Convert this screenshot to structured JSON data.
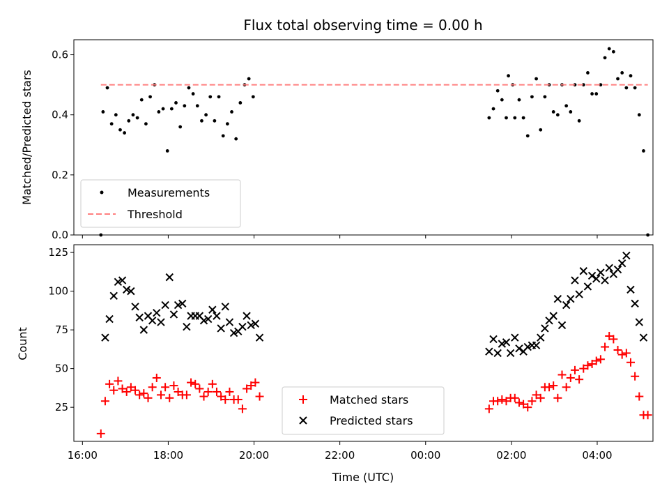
{
  "title": "Flux total observing time = 0.00 h",
  "xlabel": "Time (UTC)",
  "x_ticks": [
    "16:00",
    "18:00",
    "20:00",
    "22:00",
    "00:00",
    "02:00",
    "04:00"
  ],
  "colors": {
    "measurements": "#000000",
    "threshold": "#ff7f7f",
    "matched": "#ff0000",
    "predicted": "#000000"
  },
  "chart_data": [
    {
      "type": "scatter",
      "ylabel": "Matched/Predicted stars",
      "x_unit": "hours since 16:00 UTC",
      "xlim": [
        -0.2,
        13.3
      ],
      "ylim": [
        0,
        0.65
      ],
      "y_ticks": [
        "0.0",
        "0.2",
        "0.4",
        "0.6"
      ],
      "legend_position": "lower-left",
      "series": [
        {
          "name": "Measurements",
          "marker": "dot",
          "points": [
            [
              0.43,
              0.0
            ],
            [
              0.48,
              0.41
            ],
            [
              0.58,
              0.49
            ],
            [
              0.68,
              0.37
            ],
            [
              0.78,
              0.4
            ],
            [
              0.88,
              0.35
            ],
            [
              0.98,
              0.34
            ],
            [
              1.08,
              0.38
            ],
            [
              1.18,
              0.4
            ],
            [
              1.28,
              0.39
            ],
            [
              1.38,
              0.45
            ],
            [
              1.48,
              0.37
            ],
            [
              1.58,
              0.46
            ],
            [
              1.68,
              0.5
            ],
            [
              1.78,
              0.41
            ],
            [
              1.88,
              0.42
            ],
            [
              1.98,
              0.28
            ],
            [
              2.08,
              0.42
            ],
            [
              2.18,
              0.44
            ],
            [
              2.28,
              0.36
            ],
            [
              2.38,
              0.43
            ],
            [
              2.48,
              0.49
            ],
            [
              2.58,
              0.47
            ],
            [
              2.68,
              0.43
            ],
            [
              2.78,
              0.38
            ],
            [
              2.88,
              0.4
            ],
            [
              2.98,
              0.46
            ],
            [
              3.08,
              0.38
            ],
            [
              3.18,
              0.46
            ],
            [
              3.28,
              0.33
            ],
            [
              3.38,
              0.37
            ],
            [
              3.48,
              0.41
            ],
            [
              3.58,
              0.32
            ],
            [
              3.68,
              0.44
            ],
            [
              3.78,
              0.5
            ],
            [
              3.88,
              0.52
            ],
            [
              3.98,
              0.46
            ],
            [
              9.48,
              0.39
            ],
            [
              9.58,
              0.42
            ],
            [
              9.68,
              0.48
            ],
            [
              9.78,
              0.45
            ],
            [
              9.88,
              0.39
            ],
            [
              9.93,
              0.53
            ],
            [
              10.03,
              0.5
            ],
            [
              10.08,
              0.39
            ],
            [
              10.18,
              0.45
            ],
            [
              10.28,
              0.39
            ],
            [
              10.38,
              0.33
            ],
            [
              10.48,
              0.46
            ],
            [
              10.58,
              0.52
            ],
            [
              10.68,
              0.35
            ],
            [
              10.78,
              0.46
            ],
            [
              10.88,
              0.5
            ],
            [
              10.98,
              0.41
            ],
            [
              11.08,
              0.4
            ],
            [
              11.18,
              0.5
            ],
            [
              11.28,
              0.43
            ],
            [
              11.38,
              0.41
            ],
            [
              11.48,
              0.5
            ],
            [
              11.58,
              0.38
            ],
            [
              11.68,
              0.5
            ],
            [
              11.78,
              0.54
            ],
            [
              11.88,
              0.47
            ],
            [
              11.98,
              0.47
            ],
            [
              12.08,
              0.5
            ],
            [
              12.18,
              0.59
            ],
            [
              12.28,
              0.62
            ],
            [
              12.38,
              0.61
            ],
            [
              12.48,
              0.52
            ],
            [
              12.58,
              0.54
            ],
            [
              12.68,
              0.49
            ],
            [
              12.78,
              0.53
            ],
            [
              12.88,
              0.49
            ],
            [
              12.98,
              0.4
            ],
            [
              13.08,
              0.28
            ],
            [
              13.18,
              0.0
            ]
          ]
        },
        {
          "name": "Threshold",
          "marker": "dashed-line",
          "y": 0.5,
          "x_range": [
            0.43,
            13.18
          ]
        }
      ]
    },
    {
      "type": "scatter",
      "ylabel": "Count",
      "x_unit": "hours since 16:00 UTC",
      "xlim": [
        -0.2,
        13.3
      ],
      "ylim": [
        3,
        130
      ],
      "y_ticks": [
        "25",
        "50",
        "75",
        "100",
        "125"
      ],
      "legend_position": "lower-center",
      "series": [
        {
          "name": "Matched stars",
          "marker": "plus",
          "points": [
            [
              0.43,
              8
            ],
            [
              0.53,
              29
            ],
            [
              0.63,
              40
            ],
            [
              0.73,
              36
            ],
            [
              0.83,
              42
            ],
            [
              0.93,
              37
            ],
            [
              1.03,
              35
            ],
            [
              1.13,
              38
            ],
            [
              1.23,
              36
            ],
            [
              1.33,
              33
            ],
            [
              1.43,
              34
            ],
            [
              1.53,
              31
            ],
            [
              1.63,
              38
            ],
            [
              1.73,
              44
            ],
            [
              1.83,
              33
            ],
            [
              1.93,
              38
            ],
            [
              2.03,
              31
            ],
            [
              2.13,
              39
            ],
            [
              2.23,
              35
            ],
            [
              2.33,
              33
            ],
            [
              2.43,
              33
            ],
            [
              2.53,
              41
            ],
            [
              2.63,
              40
            ],
            [
              2.73,
              37
            ],
            [
              2.83,
              32
            ],
            [
              2.93,
              35
            ],
            [
              3.03,
              40
            ],
            [
              3.13,
              35
            ],
            [
              3.23,
              32
            ],
            [
              3.33,
              30
            ],
            [
              3.43,
              35
            ],
            [
              3.53,
              30
            ],
            [
              3.63,
              30
            ],
            [
              3.73,
              24
            ],
            [
              3.83,
              37
            ],
            [
              3.93,
              39
            ],
            [
              4.03,
              41
            ],
            [
              4.13,
              32
            ],
            [
              9.48,
              24
            ],
            [
              9.58,
              29
            ],
            [
              9.68,
              29
            ],
            [
              9.78,
              30
            ],
            [
              9.88,
              29
            ],
            [
              9.98,
              31
            ],
            [
              10.08,
              31
            ],
            [
              10.18,
              28
            ],
            [
              10.28,
              27
            ],
            [
              10.38,
              25
            ],
            [
              10.48,
              29
            ],
            [
              10.58,
              33
            ],
            [
              10.68,
              31
            ],
            [
              10.78,
              38
            ],
            [
              10.88,
              38
            ],
            [
              10.98,
              39
            ],
            [
              11.08,
              31
            ],
            [
              11.18,
              46
            ],
            [
              11.28,
              38
            ],
            [
              11.38,
              44
            ],
            [
              11.48,
              49
            ],
            [
              11.58,
              43
            ],
            [
              11.68,
              50
            ],
            [
              11.78,
              52
            ],
            [
              11.88,
              53
            ],
            [
              11.98,
              55
            ],
            [
              12.08,
              56
            ],
            [
              12.18,
              64
            ],
            [
              12.28,
              71
            ],
            [
              12.38,
              69
            ],
            [
              12.48,
              62
            ],
            [
              12.58,
              59
            ],
            [
              12.68,
              60
            ],
            [
              12.78,
              54
            ],
            [
              12.88,
              45
            ],
            [
              12.98,
              32
            ],
            [
              13.08,
              20
            ],
            [
              13.18,
              20
            ]
          ]
        },
        {
          "name": "Predicted stars",
          "marker": "x",
          "points": [
            [
              0.53,
              70
            ],
            [
              0.63,
              82
            ],
            [
              0.73,
              97
            ],
            [
              0.83,
              106
            ],
            [
              0.93,
              107
            ],
            [
              1.03,
              101
            ],
            [
              1.13,
              100
            ],
            [
              1.23,
              90
            ],
            [
              1.33,
              83
            ],
            [
              1.43,
              75
            ],
            [
              1.53,
              84
            ],
            [
              1.63,
              81
            ],
            [
              1.73,
              86
            ],
            [
              1.83,
              80
            ],
            [
              1.93,
              91
            ],
            [
              2.03,
              109
            ],
            [
              2.13,
              85
            ],
            [
              2.23,
              91
            ],
            [
              2.33,
              92
            ],
            [
              2.43,
              77
            ],
            [
              2.53,
              84
            ],
            [
              2.63,
              84
            ],
            [
              2.73,
              84
            ],
            [
              2.83,
              81
            ],
            [
              2.93,
              82
            ],
            [
              3.03,
              88
            ],
            [
              3.13,
              84
            ],
            [
              3.23,
              76
            ],
            [
              3.33,
              90
            ],
            [
              3.43,
              80
            ],
            [
              3.53,
              73
            ],
            [
              3.63,
              74
            ],
            [
              3.73,
              77
            ],
            [
              3.83,
              84
            ],
            [
              3.93,
              78
            ],
            [
              4.03,
              79
            ],
            [
              4.13,
              70
            ],
            [
              9.48,
              61
            ],
            [
              9.58,
              69
            ],
            [
              9.68,
              60
            ],
            [
              9.78,
              66
            ],
            [
              9.88,
              67
            ],
            [
              9.98,
              60
            ],
            [
              10.08,
              70
            ],
            [
              10.18,
              63
            ],
            [
              10.28,
              61
            ],
            [
              10.38,
              64
            ],
            [
              10.48,
              65
            ],
            [
              10.58,
              65
            ],
            [
              10.68,
              70
            ],
            [
              10.78,
              76
            ],
            [
              10.88,
              81
            ],
            [
              10.98,
              84
            ],
            [
              11.08,
              95
            ],
            [
              11.18,
              78
            ],
            [
              11.28,
              91
            ],
            [
              11.38,
              95
            ],
            [
              11.48,
              107
            ],
            [
              11.58,
              98
            ],
            [
              11.68,
              113
            ],
            [
              11.78,
              103
            ],
            [
              11.88,
              110
            ],
            [
              11.98,
              108
            ],
            [
              12.08,
              112
            ],
            [
              12.18,
              107
            ],
            [
              12.28,
              115
            ],
            [
              12.38,
              111
            ],
            [
              12.48,
              114
            ],
            [
              12.58,
              118
            ],
            [
              12.68,
              123
            ],
            [
              12.78,
              101
            ],
            [
              12.88,
              92
            ],
            [
              12.98,
              80
            ],
            [
              13.08,
              70
            ]
          ]
        }
      ]
    }
  ]
}
